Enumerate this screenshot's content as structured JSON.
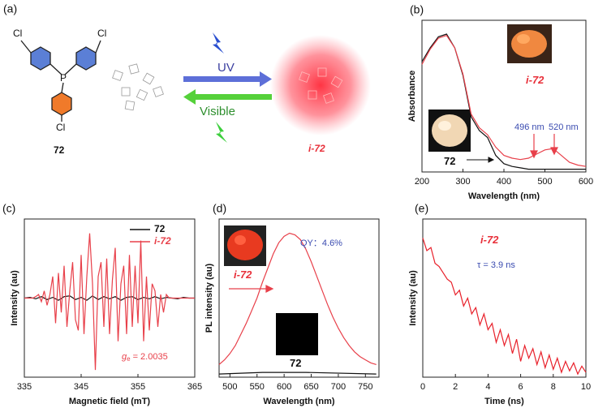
{
  "scheme": {
    "label": "(a)",
    "substituents": [
      "Cl",
      "Cl",
      "Cl"
    ],
    "center": "P",
    "compound": "72",
    "product": "i-72",
    "forward": "UV",
    "backward": "Visible"
  },
  "chart_data": [
    {
      "type": "line",
      "panel": "(b)",
      "ylabel": "Absorbance",
      "xlabel": "Wavelength (nm)",
      "xlim": [
        200,
        600
      ],
      "xticks": [
        200,
        300,
        400,
        500,
        600
      ],
      "ylim": [
        0,
        1.1
      ],
      "series": [
        {
          "color": "#111111",
          "x": [
            200,
            220,
            240,
            260,
            280,
            300,
            320,
            340,
            360,
            380,
            400,
            420,
            440,
            460,
            480,
            500,
            520,
            540,
            560,
            580,
            600
          ],
          "values": [
            0.8,
            0.9,
            0.98,
            1.0,
            0.9,
            0.7,
            0.4,
            0.3,
            0.25,
            0.12,
            0.06,
            0.04,
            0.03,
            0.02,
            0.02,
            0.02,
            0.02,
            0.02,
            0.02,
            0.02,
            0.02
          ]
        },
        {
          "color": "#e8404a",
          "x": [
            200,
            220,
            240,
            260,
            280,
            300,
            320,
            340,
            360,
            380,
            400,
            420,
            440,
            460,
            480,
            500,
            520,
            540,
            560,
            580,
            600
          ],
          "values": [
            0.78,
            0.89,
            0.97,
            0.99,
            0.9,
            0.71,
            0.42,
            0.32,
            0.27,
            0.18,
            0.12,
            0.1,
            0.09,
            0.1,
            0.13,
            0.16,
            0.17,
            0.12,
            0.07,
            0.05,
            0.04
          ]
        }
      ],
      "annotations": [
        {
          "text": "496 nm"
        },
        {
          "text": "520 nm"
        },
        {
          "text": "72"
        },
        {
          "text": "i-72"
        }
      ]
    },
    {
      "type": "line",
      "panel": "(c)",
      "ylabel": "Intensity (au)",
      "xlabel": "Magnetic field (mT)",
      "xlim": [
        335,
        365
      ],
      "xticks": [
        335,
        345,
        355,
        365
      ],
      "ylim": [
        -1.1,
        1.1
      ],
      "legend": "top-right",
      "series": [
        {
          "name": "72",
          "color": "#111111",
          "x": [
            335,
            336,
            337,
            338,
            339,
            340,
            341,
            342,
            343,
            344,
            345,
            346,
            347,
            348,
            349,
            350,
            351,
            352,
            353,
            354,
            355,
            356,
            357,
            358,
            359,
            360,
            361,
            362,
            363,
            364,
            365
          ],
          "values": [
            0,
            0.01,
            -0.01,
            0.02,
            -0.02,
            0.01,
            -0.03,
            0.02,
            0.03,
            -0.02,
            0.01,
            -0.03,
            0.03,
            -0.02,
            0.02,
            -0.01,
            0.02,
            -0.03,
            0.01,
            0.02,
            -0.02,
            0.01,
            -0.01,
            0.02,
            -0.01,
            0.01,
            0,
            -0.01,
            0.01,
            0,
            0
          ]
        },
        {
          "name": "i-72",
          "color": "#e8404a",
          "x": [
            335,
            335.5,
            336,
            336.5,
            337,
            337.5,
            338,
            338.5,
            339,
            339.5,
            340,
            340.5,
            341,
            341.5,
            342,
            342.5,
            343,
            343.5,
            344,
            344.5,
            345,
            345.5,
            346,
            346.5,
            347,
            347.5,
            348,
            348.5,
            349,
            349.5,
            350,
            350.5,
            351,
            351.5,
            352,
            352.5,
            353,
            353.5,
            354,
            354.5,
            355,
            355.5,
            356,
            356.5,
            357,
            357.5,
            358,
            358.5,
            359,
            359.5,
            360,
            360.5,
            361,
            361.5,
            362,
            362.5,
            363,
            363.5,
            364,
            364.5,
            365
          ],
          "values": [
            0,
            0,
            0,
            0,
            0.02,
            0.05,
            -0.05,
            0.1,
            -0.1,
            0.05,
            0.3,
            -0.35,
            0.35,
            -0.2,
            0.45,
            -0.4,
            0.1,
            0.5,
            -0.3,
            -0.45,
            0.6,
            -0.5,
            0.3,
            0.9,
            0.2,
            -1.0,
            0.3,
            0.5,
            -0.4,
            0.55,
            -0.5,
            0.25,
            0.7,
            -0.6,
            0.2,
            0.45,
            -0.5,
            0.6,
            -0.4,
            0.45,
            -0.35,
            0.8,
            -0.6,
            0.3,
            -0.45,
            0.2,
            0.1,
            -0.4,
            0.05,
            -0.2,
            0.05,
            0,
            0,
            0,
            0,
            0,
            0,
            0,
            0,
            0,
            0
          ]
        }
      ],
      "annotations": [
        {
          "symbol": "g",
          "subscript": "e",
          "text": "= 2.0035"
        }
      ]
    },
    {
      "type": "line",
      "panel": "(d)",
      "ylabel": "PL intensity (au)",
      "xlabel": "Wavelength (nm)",
      "xlim": [
        480,
        775
      ],
      "xticks": [
        500,
        550,
        600,
        650,
        700,
        750
      ],
      "ylim": [
        0,
        1
      ],
      "series": [
        {
          "color": "#111111",
          "x": [
            480,
            560,
            640,
            770
          ],
          "values": [
            0.02,
            0.03,
            0.03,
            0.02
          ]
        },
        {
          "color": "#e8404a",
          "x": [
            480,
            490,
            500,
            510,
            520,
            530,
            540,
            550,
            560,
            570,
            580,
            590,
            600,
            610,
            620,
            630,
            640,
            650,
            660,
            670,
            680,
            690,
            700,
            710,
            720,
            730,
            740,
            750,
            760,
            770
          ],
          "values": [
            0.08,
            0.11,
            0.15,
            0.2,
            0.27,
            0.34,
            0.42,
            0.5,
            0.6,
            0.69,
            0.78,
            0.85,
            0.89,
            0.91,
            0.9,
            0.87,
            0.81,
            0.73,
            0.64,
            0.55,
            0.46,
            0.38,
            0.31,
            0.25,
            0.2,
            0.16,
            0.13,
            0.11,
            0.09,
            0.08
          ]
        }
      ],
      "annotations": [
        {
          "text": "QY：4.6%"
        },
        {
          "text": "i-72"
        },
        {
          "text": "72"
        }
      ]
    },
    {
      "type": "line",
      "panel": "(e)",
      "ylabel": "Intensity (au)",
      "xlabel": "Time (ns)",
      "xlim": [
        0,
        10
      ],
      "xticks": [
        0,
        2,
        4,
        6,
        8,
        10
      ],
      "ylim": [
        0,
        1
      ],
      "series": [
        {
          "color": "#e8202a",
          "x": [
            0,
            0.25,
            0.5,
            0.75,
            1,
            1.25,
            1.5,
            1.75,
            2,
            2.25,
            2.5,
            2.75,
            3,
            3.25,
            3.5,
            3.75,
            4,
            4.25,
            4.5,
            4.75,
            5,
            5.25,
            5.5,
            5.75,
            6,
            6.25,
            6.5,
            6.75,
            7,
            7.25,
            7.5,
            7.75,
            8,
            8.25,
            8.5,
            8.75,
            9,
            9.25,
            9.5,
            9.75,
            10
          ],
          "values": [
            0.88,
            0.8,
            0.82,
            0.72,
            0.7,
            0.66,
            0.62,
            0.6,
            0.52,
            0.55,
            0.45,
            0.5,
            0.4,
            0.44,
            0.33,
            0.4,
            0.3,
            0.34,
            0.22,
            0.3,
            0.2,
            0.27,
            0.15,
            0.24,
            0.1,
            0.2,
            0.12,
            0.18,
            0.08,
            0.16,
            0.06,
            0.14,
            0.05,
            0.12,
            0.03,
            0.1,
            0.04,
            0.09,
            0.02,
            0.07,
            0.03
          ]
        }
      ],
      "annotations": [
        {
          "text": "i-72"
        },
        {
          "text": "τ = 3.9 ns"
        }
      ]
    }
  ]
}
